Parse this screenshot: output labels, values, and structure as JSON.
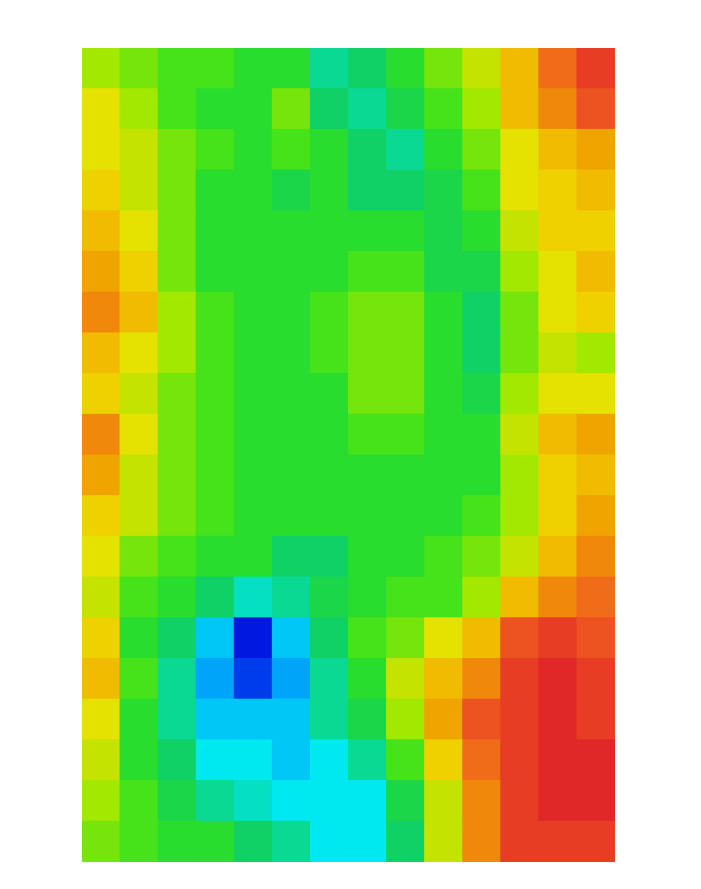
{
  "chart_data": {
    "type": "heatmap",
    "tick_labels": false,
    "grid": false,
    "z": [
      [
        60,
        55,
        52,
        52,
        50,
        48,
        38,
        42,
        48,
        55,
        62,
        72,
        85,
        90
      ],
      [
        66,
        60,
        54,
        50,
        50,
        55,
        44,
        38,
        46,
        52,
        60,
        72,
        82,
        88
      ],
      [
        66,
        62,
        56,
        52,
        50,
        52,
        48,
        42,
        40,
        48,
        56,
        68,
        74,
        78
      ],
      [
        70,
        64,
        56,
        50,
        48,
        47,
        48,
        42,
        44,
        46,
        52,
        66,
        70,
        72
      ],
      [
        74,
        66,
        57,
        50,
        48,
        48,
        50,
        50,
        48,
        45,
        50,
        64,
        70,
        70
      ],
      [
        78,
        70,
        58,
        50,
        48,
        48,
        50,
        52,
        52,
        46,
        46,
        60,
        68,
        72
      ],
      [
        80,
        74,
        60,
        52,
        50,
        50,
        52,
        56,
        56,
        50,
        44,
        58,
        68,
        70
      ],
      [
        74,
        68,
        60,
        54,
        50,
        50,
        52,
        57,
        58,
        50,
        44,
        58,
        64,
        60
      ],
      [
        70,
        64,
        58,
        54,
        50,
        48,
        50,
        56,
        57,
        50,
        46,
        60,
        68,
        68
      ],
      [
        82,
        66,
        58,
        52,
        50,
        50,
        50,
        54,
        54,
        50,
        48,
        62,
        72,
        76
      ],
      [
        76,
        64,
        58,
        52,
        50,
        50,
        50,
        50,
        50,
        50,
        50,
        60,
        70,
        74
      ],
      [
        70,
        62,
        56,
        52,
        50,
        50,
        48,
        48,
        50,
        50,
        52,
        60,
        70,
        78
      ],
      [
        66,
        58,
        52,
        50,
        48,
        44,
        44,
        48,
        50,
        52,
        56,
        64,
        74,
        80
      ],
      [
        64,
        52,
        48,
        44,
        36,
        38,
        46,
        50,
        52,
        54,
        60,
        72,
        82,
        84
      ],
      [
        70,
        50,
        42,
        28,
        12,
        28,
        44,
        54,
        58,
        66,
        74,
        86,
        90,
        88
      ],
      [
        74,
        52,
        40,
        24,
        14,
        26,
        40,
        50,
        62,
        74,
        82,
        90,
        94,
        90
      ],
      [
        66,
        50,
        38,
        30,
        28,
        30,
        38,
        46,
        60,
        76,
        86,
        92,
        94,
        92
      ],
      [
        62,
        50,
        42,
        34,
        32,
        30,
        32,
        40,
        54,
        70,
        84,
        90,
        94,
        94
      ],
      [
        60,
        52,
        46,
        40,
        36,
        34,
        32,
        32,
        46,
        64,
        80,
        90,
        94,
        94
      ],
      [
        56,
        52,
        50,
        48,
        44,
        38,
        34,
        32,
        44,
        62,
        80,
        90,
        92,
        92
      ]
    ]
  }
}
